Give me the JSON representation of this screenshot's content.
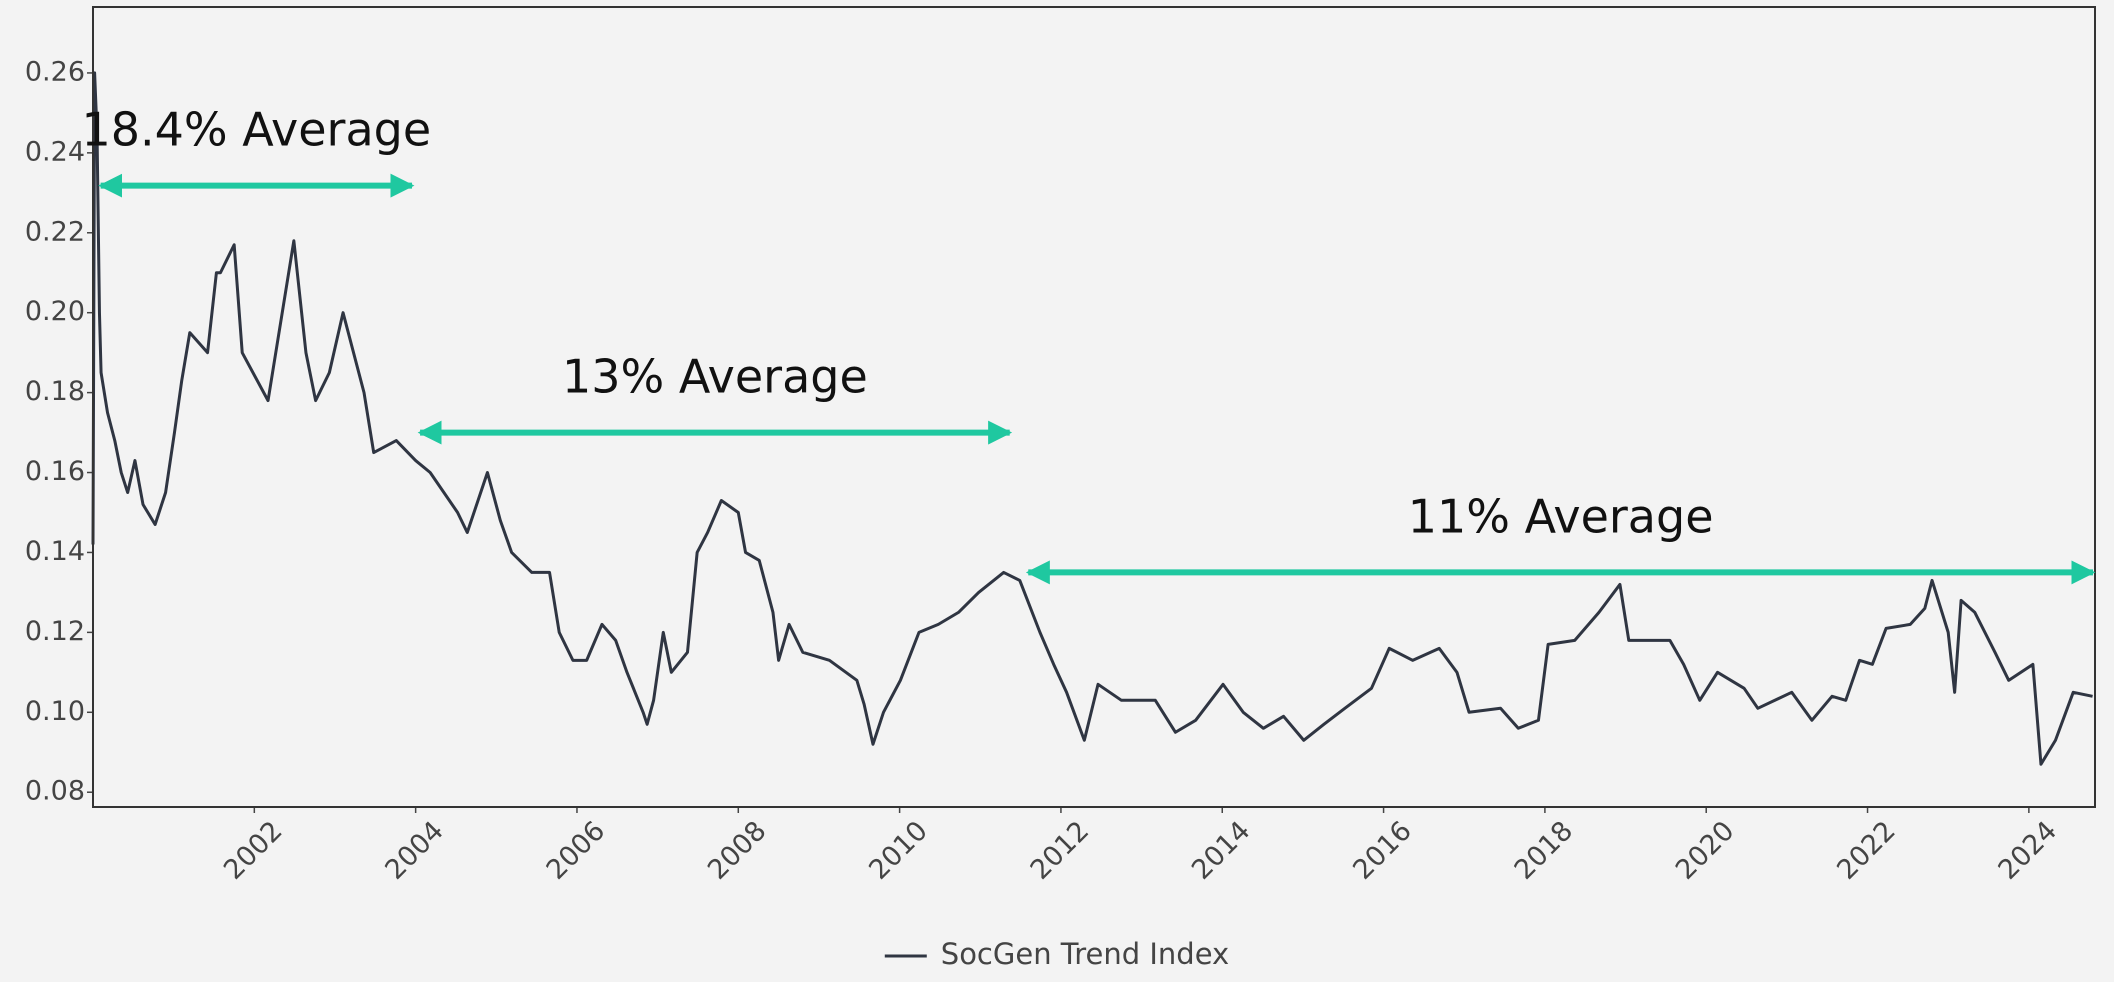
{
  "chart_data": {
    "type": "line",
    "series": [
      {
        "name": "SocGen Trend Index",
        "color": "#2f3542",
        "x": [
          2000.0,
          2000.02,
          2000.05,
          2000.08,
          2000.1,
          2000.18,
          2000.27,
          2000.35,
          2000.43,
          2000.52,
          2000.62,
          2000.77,
          2000.9,
          2001.01,
          2001.1,
          2001.2,
          2001.42,
          2001.53,
          2001.58,
          2001.75,
          2001.85,
          2002.17,
          2002.49,
          2002.64,
          2002.76,
          2002.93,
          2003.1,
          2003.23,
          2003.36,
          2003.48,
          2003.76,
          2004.0,
          2004.18,
          2004.52,
          2004.64,
          2004.89,
          2005.05,
          2005.19,
          2005.44,
          2005.66,
          2005.78,
          2005.95,
          2006.12,
          2006.31,
          2006.48,
          2006.62,
          2006.82,
          2006.87,
          2006.95,
          2007.07,
          2007.17,
          2007.37,
          2007.49,
          2007.62,
          2007.79,
          2008.0,
          2008.09,
          2008.26,
          2008.43,
          2008.5,
          2008.63,
          2008.8,
          2009.13,
          2009.47,
          2009.56,
          2009.67,
          2009.8,
          2010.01,
          2010.24,
          2010.48,
          2010.73,
          2010.98,
          2011.29,
          2011.49,
          2011.74,
          2011.91,
          2012.07,
          2012.29,
          2012.46,
          2012.75,
          2013.17,
          2013.42,
          2013.67,
          2014.01,
          2014.26,
          2014.51,
          2014.76,
          2015.01,
          2015.26,
          2015.52,
          2015.85,
          2016.07,
          2016.36,
          2016.69,
          2016.91,
          2017.06,
          2017.45,
          2017.67,
          2017.92,
          2018.04,
          2018.37,
          2018.67,
          2018.93,
          2019.04,
          2019.55,
          2019.72,
          2019.92,
          2020.14,
          2020.47,
          2020.64,
          2021.06,
          2021.31,
          2021.56,
          2021.73,
          2021.9,
          2022.06,
          2022.23,
          2022.53,
          2022.71,
          2022.8,
          2023.0,
          2023.08,
          2023.16,
          2023.33,
          2023.58,
          2023.75,
          2024.05,
          2024.15,
          2024.33,
          2024.55,
          2024.79
        ],
        "values": [
          0.142,
          0.26,
          0.245,
          0.2,
          0.185,
          0.175,
          0.168,
          0.16,
          0.155,
          0.163,
          0.152,
          0.147,
          0.155,
          0.17,
          0.183,
          0.195,
          0.19,
          0.21,
          0.21,
          0.217,
          0.19,
          0.178,
          0.218,
          0.19,
          0.178,
          0.185,
          0.2,
          0.19,
          0.18,
          0.165,
          0.168,
          0.163,
          0.16,
          0.15,
          0.145,
          0.16,
          0.148,
          0.14,
          0.135,
          0.135,
          0.12,
          0.113,
          0.113,
          0.122,
          0.118,
          0.11,
          0.1,
          0.097,
          0.103,
          0.12,
          0.11,
          0.115,
          0.14,
          0.145,
          0.153,
          0.15,
          0.14,
          0.138,
          0.125,
          0.113,
          0.122,
          0.115,
          0.113,
          0.108,
          0.102,
          0.092,
          0.1,
          0.108,
          0.12,
          0.122,
          0.125,
          0.13,
          0.135,
          0.133,
          0.12,
          0.112,
          0.105,
          0.093,
          0.107,
          0.103,
          0.103,
          0.095,
          0.098,
          0.107,
          0.1,
          0.096,
          0.099,
          0.093,
          0.097,
          0.101,
          0.106,
          0.116,
          0.113,
          0.116,
          0.11,
          0.1,
          0.101,
          0.096,
          0.098,
          0.117,
          0.118,
          0.125,
          0.132,
          0.118,
          0.118,
          0.112,
          0.103,
          0.11,
          0.106,
          0.101,
          0.105,
          0.098,
          0.104,
          0.103,
          0.113,
          0.112,
          0.121,
          0.122,
          0.126,
          0.133,
          0.12,
          0.105,
          0.128,
          0.125,
          0.115,
          0.108,
          0.112,
          0.087,
          0.093,
          0.105,
          0.104
        ]
      }
    ],
    "xlim": [
      2000.0,
      2024.82
    ],
    "xticks": [
      2002,
      2004,
      2006,
      2008,
      2010,
      2012,
      2014,
      2016,
      2018,
      2020,
      2022,
      2024
    ],
    "ylim": [
      0.0763,
      0.2765
    ],
    "yticks": [
      0.08,
      {
        "value": 0.1,
        "label": "0.10"
      },
      0.12,
      0.14,
      0.16,
      0.18,
      {
        "value": 0.2,
        "label": "0.20"
      },
      0.22,
      0.24,
      0.26
    ],
    "annotations": [
      {
        "text": "18.4% Average",
        "x": [
          2000.07,
          2003.98
        ],
        "y": 0.2318,
        "color": "#1fc8a0"
      },
      {
        "text": "13% Average",
        "x": [
          2004.03,
          2011.39
        ],
        "y": 0.17,
        "color": "#1fc8a0"
      },
      {
        "text": "11% Average",
        "x": [
          2011.57,
          2024.82
        ],
        "y": 0.135,
        "color": "#1fc8a0"
      }
    ],
    "legend": "bottom"
  }
}
